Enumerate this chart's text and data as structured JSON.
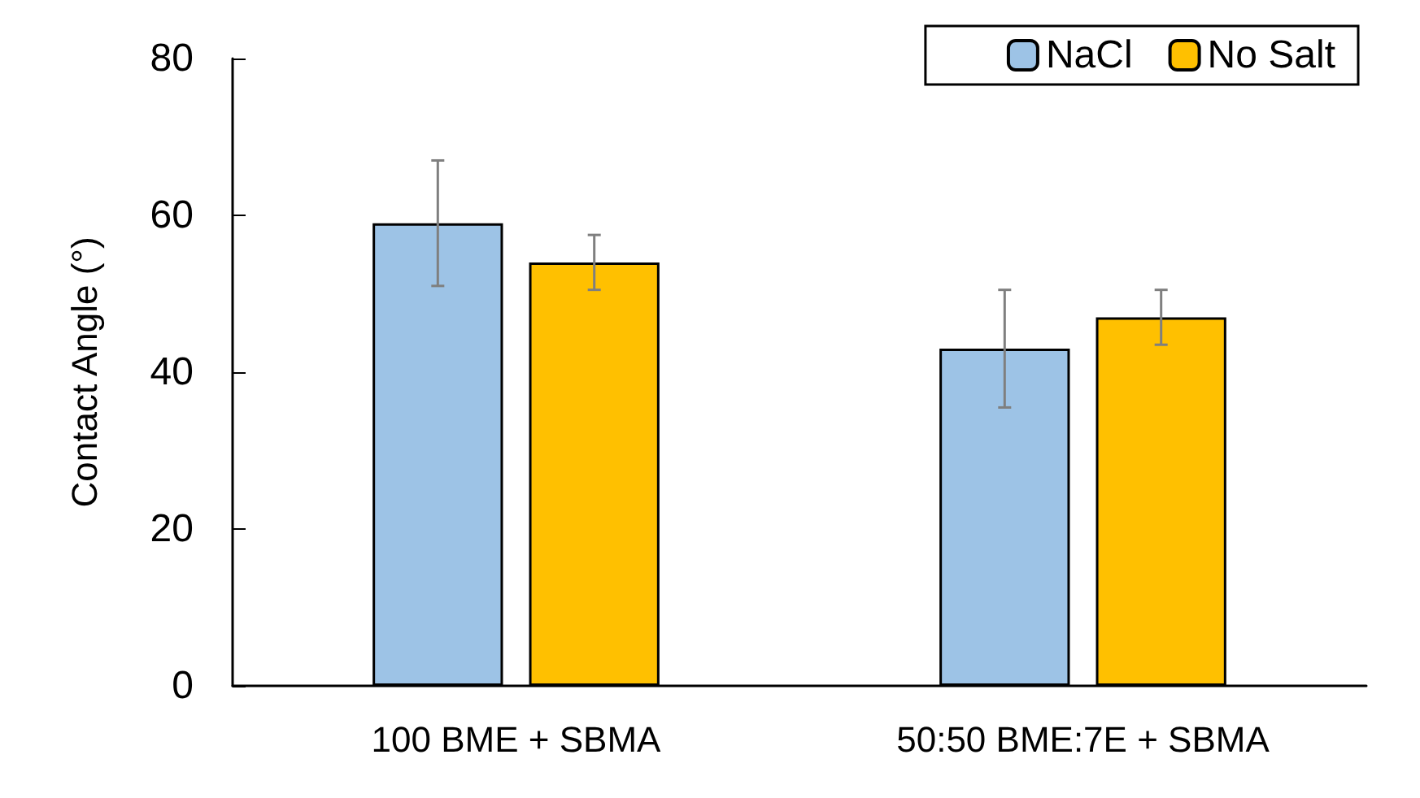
{
  "chart_data": {
    "type": "bar",
    "ylabel": "Contact Angle (°)",
    "categories": [
      "100 BME + SBMA",
      "50:50 BME:7E + SBMA"
    ],
    "series": [
      {
        "name": "NaCl",
        "color": "#9dc3e6",
        "values": [
          59,
          43
        ],
        "errors": [
          8,
          7.5
        ]
      },
      {
        "name": "No Salt",
        "color": "#ffc000",
        "values": [
          54,
          47
        ],
        "errors": [
          3.5,
          3.5
        ]
      }
    ],
    "ylim": [
      0,
      80
    ],
    "yticks": [
      0,
      20,
      40,
      60,
      80
    ],
    "grid": false,
    "legend": "top right"
  }
}
